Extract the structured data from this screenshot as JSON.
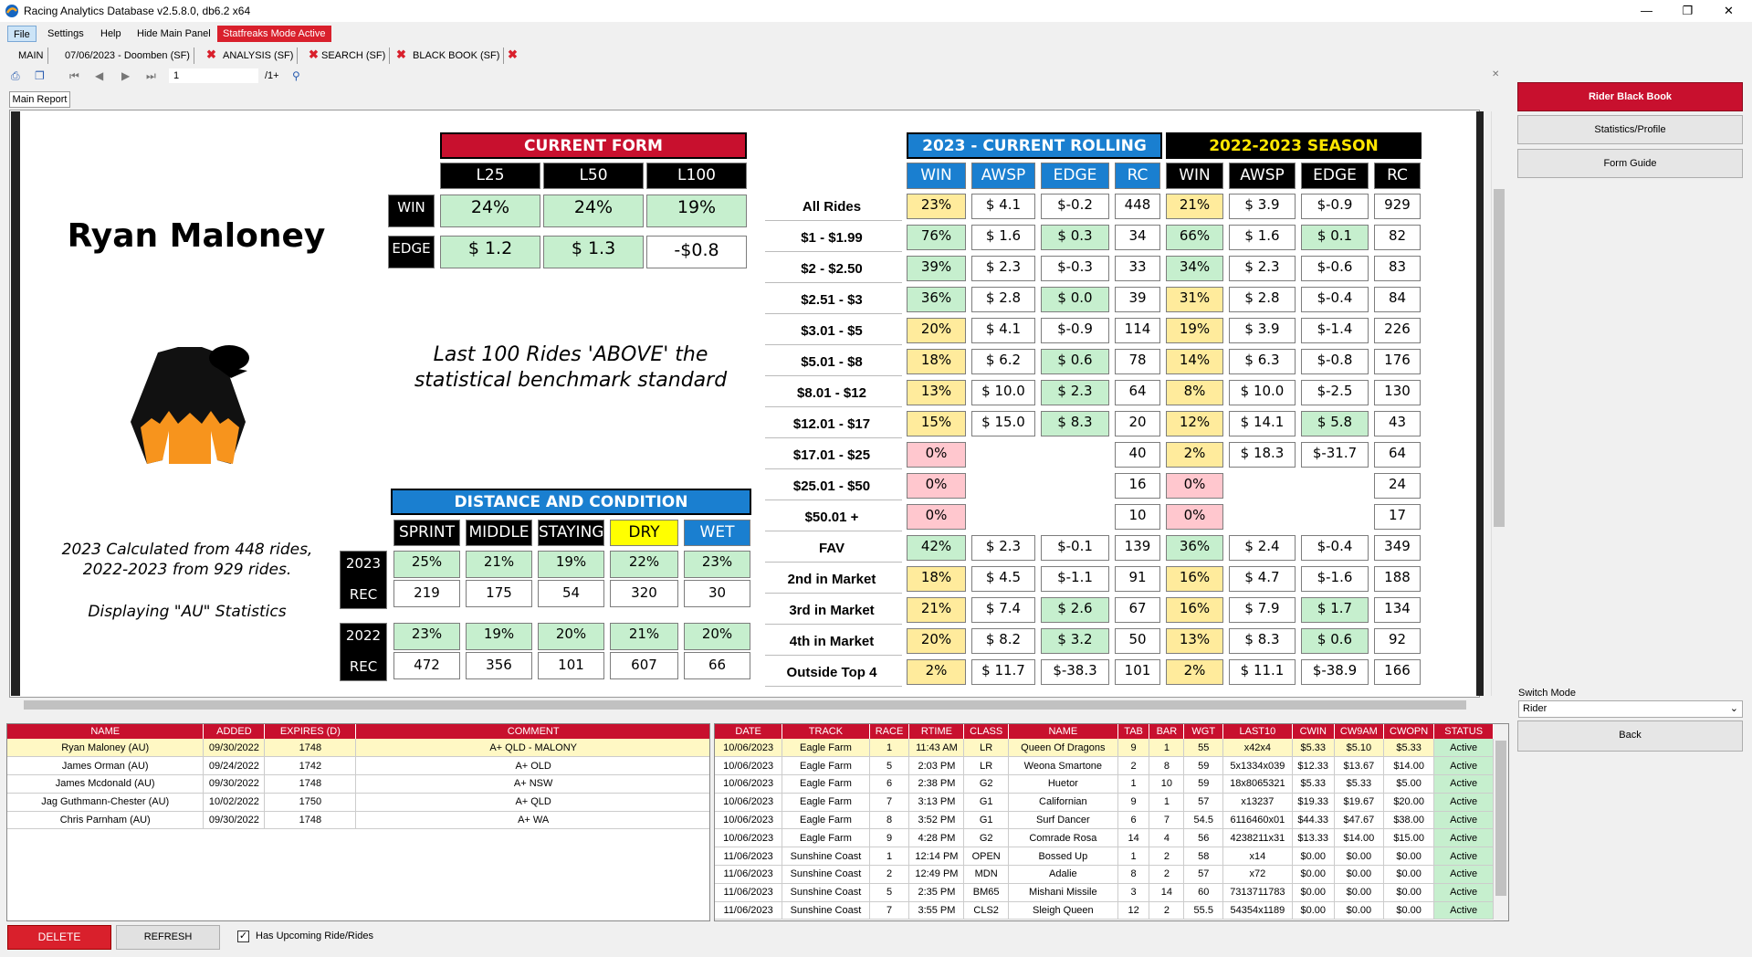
{
  "window": {
    "title": "Racing Analytics Database v2.5.8.0, db6.2 x64",
    "minimize": "—",
    "maximize": "❐",
    "close": "✕"
  },
  "menu": {
    "file": "File",
    "settings": "Settings",
    "help": "Help",
    "hide_main_panel": "Hide Main Panel",
    "mode_active": "Statfreaks Mode Active"
  },
  "tabs": [
    {
      "label": "MAIN"
    },
    {
      "label": "07/06/2023 - Doomben (SF)"
    },
    {
      "label": "ANALYSIS (SF)"
    },
    {
      "label": "SEARCH (SF)"
    },
    {
      "label": "BLACK BOOK (SF)"
    }
  ],
  "toolbar": {
    "page_value": "1",
    "page_total": "/1+"
  },
  "report_tab": "Main Report",
  "rider": {
    "name": "Ryan Maloney",
    "benchmark_line1": "Last  100 Rides 'ABOVE' the",
    "benchmark_line2": "statistical benchmark standard",
    "calc_line1": "2023 Calculated from 448 rides,",
    "calc_line2": "2022-2023 from 929 rides.",
    "display_stats": "Displaying \"AU\" Statistics"
  },
  "current_form": {
    "title": "CURRENT FORM",
    "columns": [
      "L25",
      "L50",
      "L100"
    ],
    "win_label": "WIN",
    "edge_label": "EDGE",
    "win": [
      "24%",
      "24%",
      "19%"
    ],
    "edge": [
      "$ 1.2",
      "$ 1.3",
      "-$0.8"
    ]
  },
  "distance": {
    "title": "DISTANCE AND CONDITION",
    "columns": [
      "SPRINT",
      "MIDDLE",
      "STAYING",
      "DRY",
      "WET"
    ],
    "rows": [
      {
        "year": "2023",
        "pct": [
          "25%",
          "21%",
          "19%",
          "22%",
          "23%"
        ],
        "rec_label": "REC",
        "rec": [
          "219",
          "175",
          "54",
          "320",
          "30"
        ]
      },
      {
        "year": "2022",
        "pct": [
          "23%",
          "19%",
          "20%",
          "21%",
          "20%"
        ],
        "rec_label": "REC",
        "rec": [
          "472",
          "356",
          "101",
          "607",
          "66"
        ]
      }
    ]
  },
  "rolling": {
    "title_2023": "2023 - CURRENT ROLLING",
    "title_season": "2022-2023 SEASON",
    "columns": [
      "WIN",
      "AWSP",
      "EDGE",
      "RC",
      "WIN",
      "AWSP",
      "EDGE",
      "RC"
    ],
    "rows": [
      {
        "label": "All Rides",
        "v": [
          "23%",
          "$ 4.1",
          "$-0.2",
          "448",
          "21%",
          "$ 3.9",
          "$-0.9",
          "929"
        ],
        "c": [
          "y",
          "w",
          "w",
          "w",
          "y",
          "w",
          "w",
          "w"
        ]
      },
      {
        "label": "$1 - $1.99",
        "v": [
          "76%",
          "$ 1.6",
          "$ 0.3",
          "34",
          "66%",
          "$ 1.6",
          "$ 0.1",
          "82"
        ],
        "c": [
          "g",
          "w",
          "g",
          "w",
          "g",
          "w",
          "g",
          "w"
        ]
      },
      {
        "label": "$2 - $2.50",
        "v": [
          "39%",
          "$ 2.3",
          "$-0.3",
          "33",
          "34%",
          "$ 2.3",
          "$-0.6",
          "83"
        ],
        "c": [
          "g",
          "w",
          "w",
          "w",
          "g",
          "w",
          "w",
          "w"
        ]
      },
      {
        "label": "$2.51 - $3",
        "v": [
          "36%",
          "$ 2.8",
          "$ 0.0",
          "39",
          "31%",
          "$ 2.8",
          "$-0.4",
          "84"
        ],
        "c": [
          "g",
          "w",
          "g",
          "w",
          "y",
          "w",
          "w",
          "w"
        ]
      },
      {
        "label": "$3.01 - $5",
        "v": [
          "20%",
          "$ 4.1",
          "$-0.9",
          "114",
          "19%",
          "$ 3.9",
          "$-1.4",
          "226"
        ],
        "c": [
          "y",
          "w",
          "w",
          "w",
          "y",
          "w",
          "w",
          "w"
        ]
      },
      {
        "label": "$5.01 - $8",
        "v": [
          "18%",
          "$ 6.2",
          "$ 0.6",
          "78",
          "14%",
          "$ 6.3",
          "$-0.8",
          "176"
        ],
        "c": [
          "y",
          "w",
          "g",
          "w",
          "y",
          "w",
          "w",
          "w"
        ]
      },
      {
        "label": "$8.01 - $12",
        "v": [
          "13%",
          "$ 10.0",
          "$ 2.3",
          "64",
          "8%",
          "$ 10.0",
          "$-2.5",
          "130"
        ],
        "c": [
          "y",
          "w",
          "g",
          "w",
          "y",
          "w",
          "w",
          "w"
        ]
      },
      {
        "label": "$12.01 - $17",
        "v": [
          "15%",
          "$ 15.0",
          "$ 8.3",
          "20",
          "12%",
          "$ 14.1",
          "$ 5.8",
          "43"
        ],
        "c": [
          "y",
          "w",
          "g",
          "w",
          "y",
          "w",
          "g",
          "w"
        ]
      },
      {
        "label": "$17.01 - $25",
        "v": [
          "0%",
          "",
          "",
          "40",
          "2%",
          "$ 18.3",
          "$-31.7",
          "64"
        ],
        "c": [
          "p",
          "n",
          "n",
          "w",
          "y",
          "w",
          "w",
          "w"
        ]
      },
      {
        "label": "$25.01 - $50",
        "v": [
          "0%",
          "",
          "",
          "16",
          "0%",
          "",
          "",
          "24"
        ],
        "c": [
          "p",
          "n",
          "n",
          "w",
          "p",
          "n",
          "n",
          "w"
        ]
      },
      {
        "label": "$50.01 +",
        "v": [
          "0%",
          "",
          "",
          "10",
          "0%",
          "",
          "",
          "17"
        ],
        "c": [
          "p",
          "n",
          "n",
          "w",
          "p",
          "n",
          "n",
          "w"
        ]
      },
      {
        "label": "FAV",
        "v": [
          "42%",
          "$ 2.3",
          "$-0.1",
          "139",
          "36%",
          "$ 2.4",
          "$-0.4",
          "349"
        ],
        "c": [
          "g",
          "w",
          "w",
          "w",
          "g",
          "w",
          "w",
          "w"
        ]
      },
      {
        "label": "2nd in Market",
        "v": [
          "18%",
          "$ 4.5",
          "$-1.1",
          "91",
          "16%",
          "$ 4.7",
          "$-1.6",
          "188"
        ],
        "c": [
          "y",
          "w",
          "w",
          "w",
          "y",
          "w",
          "w",
          "w"
        ]
      },
      {
        "label": "3rd in Market",
        "v": [
          "21%",
          "$ 7.4",
          "$ 2.6",
          "67",
          "16%",
          "$ 7.9",
          "$ 1.7",
          "134"
        ],
        "c": [
          "y",
          "w",
          "g",
          "w",
          "y",
          "w",
          "g",
          "w"
        ]
      },
      {
        "label": "4th in Market",
        "v": [
          "20%",
          "$ 8.2",
          "$ 3.2",
          "50",
          "13%",
          "$ 8.3",
          "$ 0.6",
          "92"
        ],
        "c": [
          "y",
          "w",
          "g",
          "w",
          "y",
          "w",
          "g",
          "w"
        ]
      },
      {
        "label": "Outside Top 4",
        "v": [
          "2%",
          "$ 11.7",
          "$-38.3",
          "101",
          "2%",
          "$ 11.1",
          "$-38.9",
          "166"
        ],
        "c": [
          "y",
          "w",
          "w",
          "w",
          "y",
          "w",
          "w",
          "w"
        ]
      }
    ]
  },
  "side": {
    "black_book": "Rider Black Book",
    "stats": "Statistics/Profile",
    "form_guide": "Form Guide",
    "switch_mode_label": "Switch Mode",
    "switch_mode_value": "Rider",
    "back": "Back"
  },
  "blackbook": {
    "headers": [
      "NAME",
      "ADDED",
      "EXPIRES (D)",
      "COMMENT"
    ],
    "rows": [
      [
        "Ryan Maloney (AU)",
        "09/30/2022",
        "1748",
        "A+ QLD - MALONY"
      ],
      [
        "James Orman (AU)",
        "09/24/2022",
        "1742",
        "A+ OLD"
      ],
      [
        "James Mcdonald (AU)",
        "09/30/2022",
        "1748",
        "A+ NSW"
      ],
      [
        "Jag Guthmann-Chester (AU)",
        "10/02/2022",
        "1750",
        "A+ QLD"
      ],
      [
        "Chris Parnham (AU)",
        "09/30/2022",
        "1748",
        "A+ WA"
      ]
    ]
  },
  "upcoming": {
    "headers": [
      "DATE",
      "TRACK",
      "RACE",
      "RTIME",
      "CLASS",
      "NAME",
      "TAB",
      "BAR",
      "WGT",
      "LAST10",
      "CWIN",
      "CW9AM",
      "CWOPN",
      "STATUS"
    ],
    "rows": [
      [
        "10/06/2023",
        "Eagle Farm",
        "1",
        "11:43 AM",
        "LR",
        "Queen Of Dragons",
        "9",
        "1",
        "55",
        "x42x4",
        "$5.33",
        "$5.10",
        "$5.33",
        "Active"
      ],
      [
        "10/06/2023",
        "Eagle Farm",
        "5",
        "2:03 PM",
        "LR",
        "Weona Smartone",
        "2",
        "8",
        "59",
        "5x1334x039",
        "$12.33",
        "$13.67",
        "$14.00",
        "Active"
      ],
      [
        "10/06/2023",
        "Eagle Farm",
        "6",
        "2:38 PM",
        "G2",
        "Huetor",
        "1",
        "10",
        "59",
        "18x8065321",
        "$5.33",
        "$5.33",
        "$5.00",
        "Active"
      ],
      [
        "10/06/2023",
        "Eagle Farm",
        "7",
        "3:13 PM",
        "G1",
        "Californian",
        "9",
        "1",
        "57",
        "x13237",
        "$19.33",
        "$19.67",
        "$20.00",
        "Active"
      ],
      [
        "10/06/2023",
        "Eagle Farm",
        "8",
        "3:52 PM",
        "G1",
        "Surf Dancer",
        "6",
        "7",
        "54.5",
        "6116460x01",
        "$44.33",
        "$47.67",
        "$38.00",
        "Active"
      ],
      [
        "10/06/2023",
        "Eagle Farm",
        "9",
        "4:28 PM",
        "G2",
        "Comrade Rosa",
        "14",
        "4",
        "56",
        "4238211x31",
        "$13.33",
        "$14.00",
        "$15.00",
        "Active"
      ],
      [
        "11/06/2023",
        "Sunshine Coast",
        "1",
        "12:14 PM",
        "OPEN",
        "Bossed Up",
        "1",
        "2",
        "58",
        "x14",
        "$0.00",
        "$0.00",
        "$0.00",
        "Active"
      ],
      [
        "11/06/2023",
        "Sunshine Coast",
        "2",
        "12:49 PM",
        "MDN",
        "Adalie",
        "8",
        "2",
        "57",
        "x72",
        "$0.00",
        "$0.00",
        "$0.00",
        "Active"
      ],
      [
        "11/06/2023",
        "Sunshine Coast",
        "5",
        "2:35 PM",
        "BM65",
        "Mishani Missile",
        "3",
        "14",
        "60",
        "7313711783",
        "$0.00",
        "$0.00",
        "$0.00",
        "Active"
      ],
      [
        "11/06/2023",
        "Sunshine Coast",
        "7",
        "3:55 PM",
        "CLS2",
        "Sleigh Queen",
        "12",
        "2",
        "55.5",
        "54354x1189",
        "$0.00",
        "$0.00",
        "$0.00",
        "Active"
      ]
    ]
  },
  "bottom": {
    "delete": "DELETE",
    "refresh": "REFRESH",
    "upcoming_check": "Has Upcoming Ride/Rides"
  },
  "colors": {
    "red": "#c8102e",
    "blue": "#1a7fd0",
    "green": "#c6efce",
    "yellow": "#ffeb9c",
    "pink": "#ffc7ce",
    "dry": "#ffff00"
  }
}
